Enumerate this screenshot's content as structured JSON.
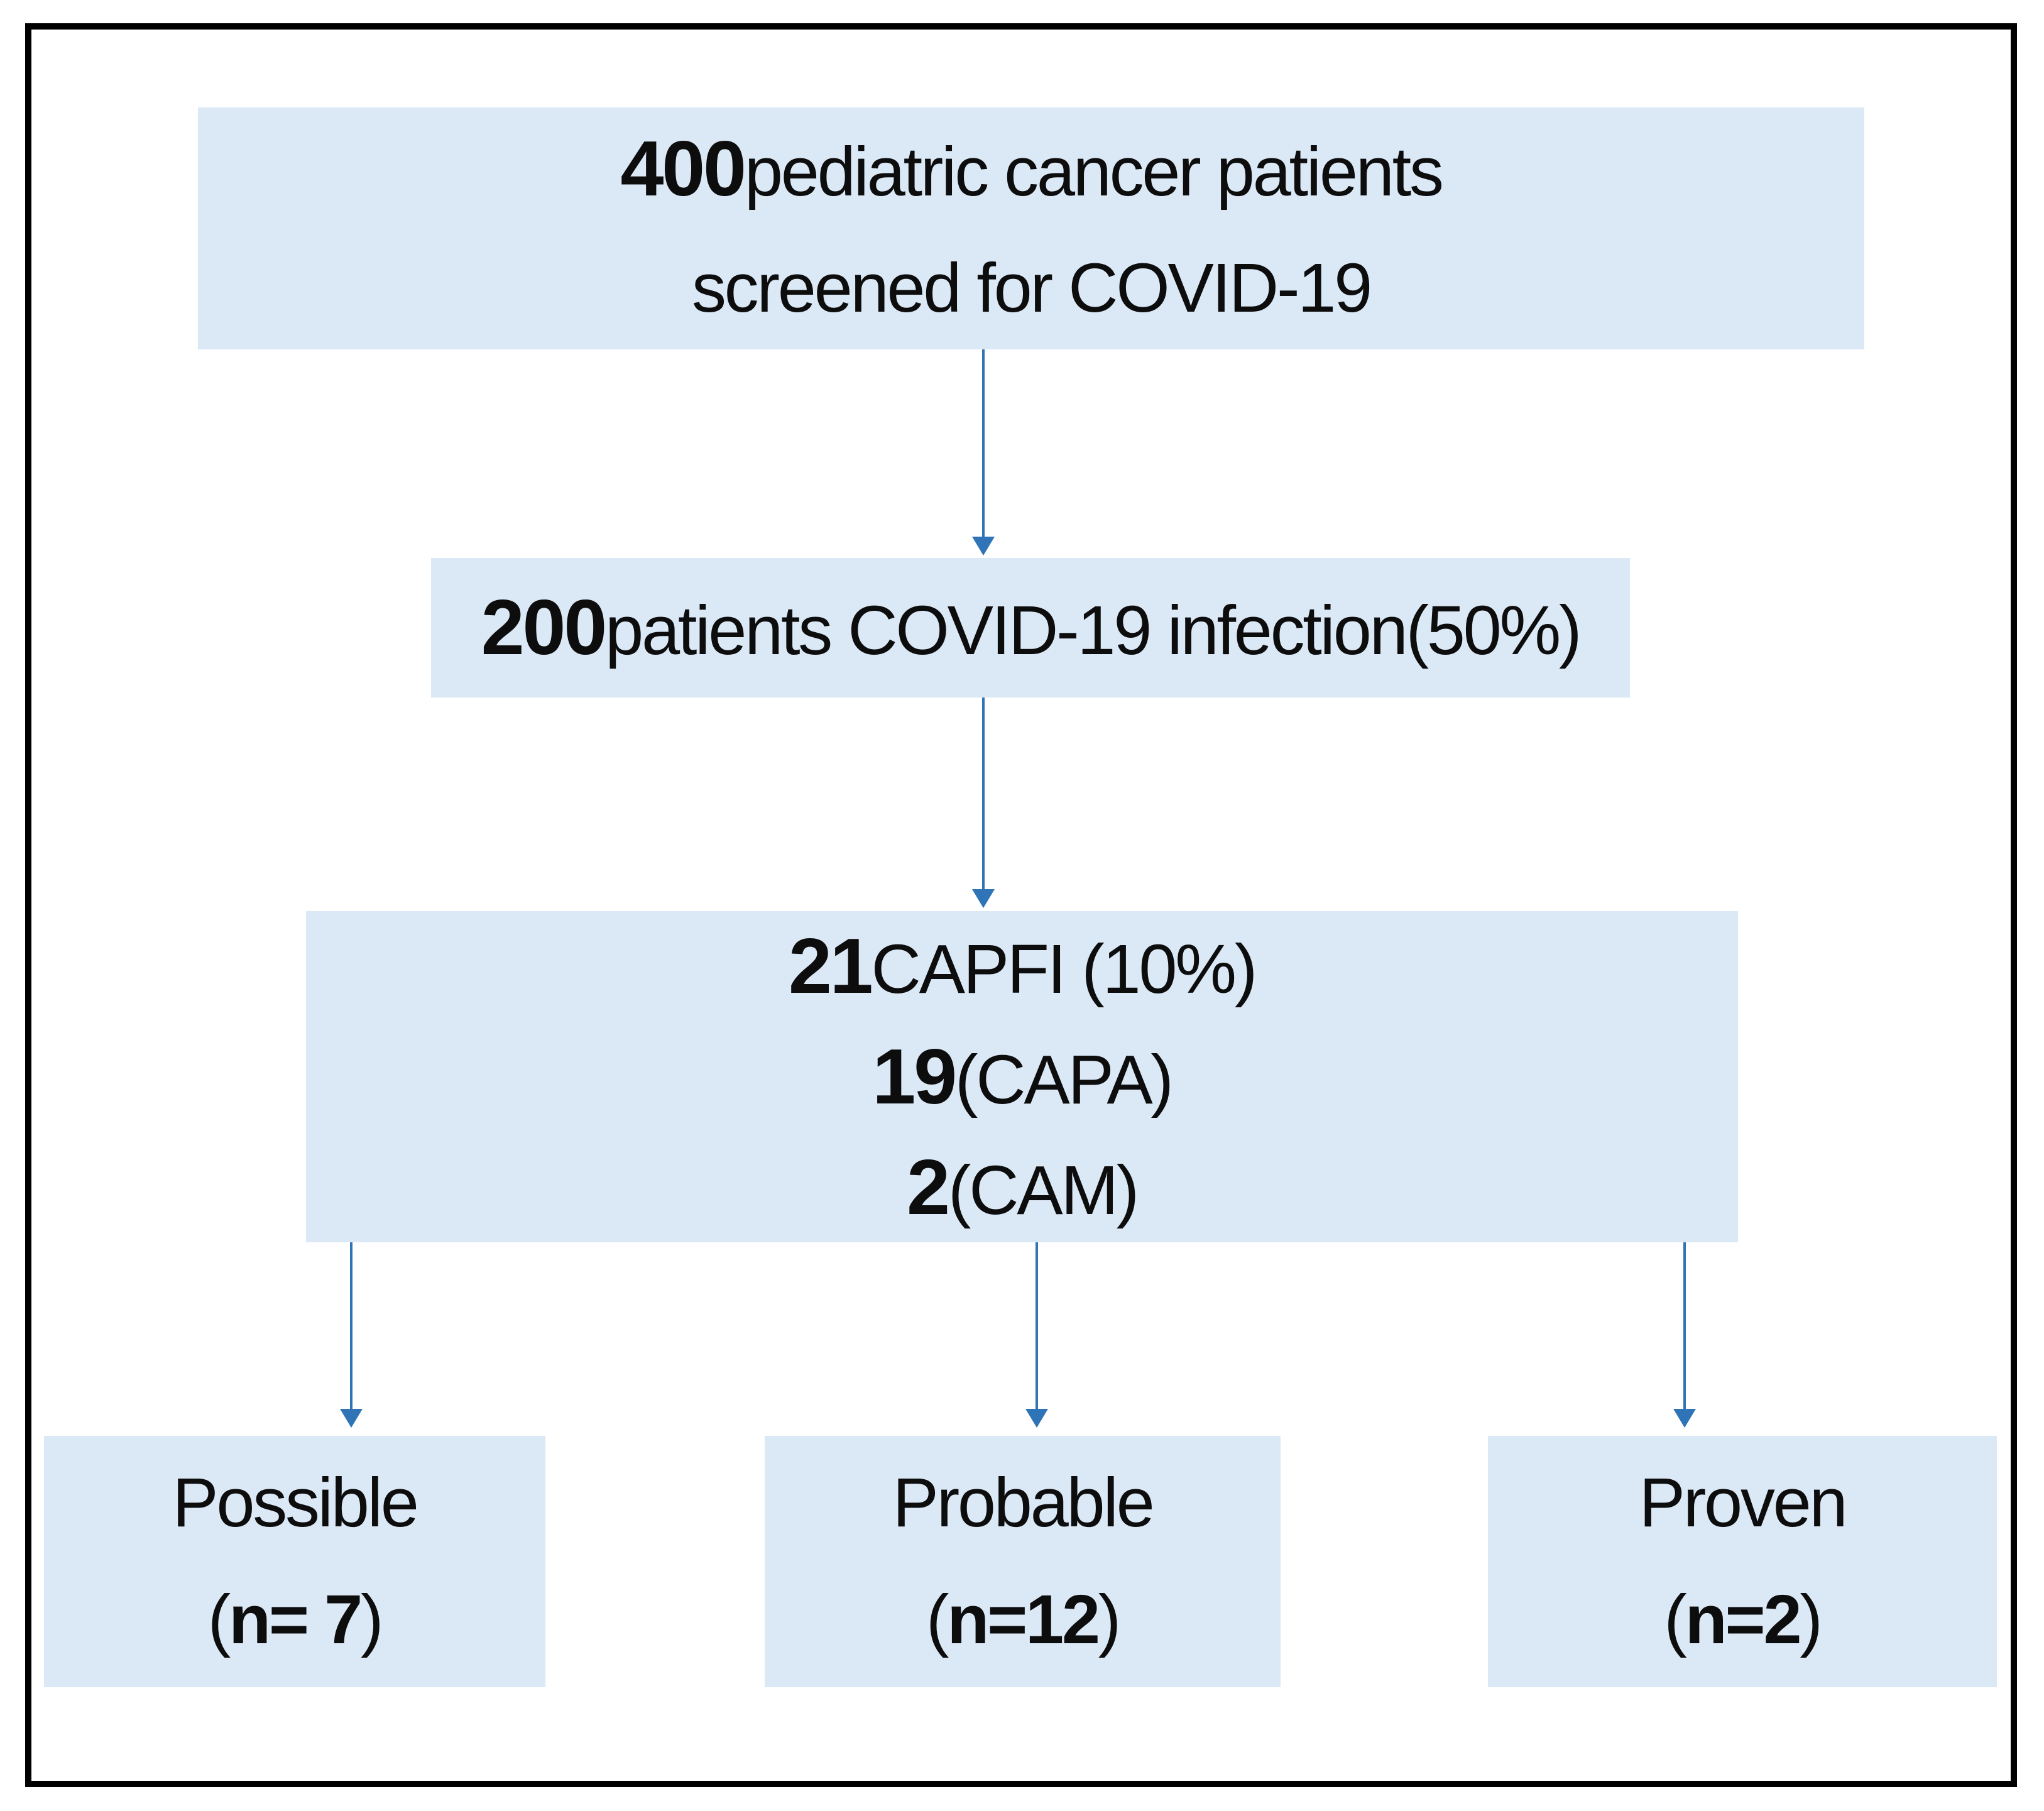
{
  "figure": {
    "type": "flowchart",
    "title": "COVID-19 associated fungal infection screening flowchart",
    "colors": {
      "box_fill": "#dbe8f6",
      "arrow": "#2e74b6",
      "frame_border": "#000000",
      "text": "#0d0d0d",
      "background": "#ffffff"
    },
    "nodes": {
      "screened": {
        "lines": {
          "0": [
            {
              "t": "400",
              "b": true
            },
            {
              "t": " pediatric cancer patients",
              "b": false
            }
          ],
          "1": [
            {
              "t": "screened for COVID-19",
              "b": false
            }
          ]
        }
      },
      "covid": {
        "lines": {
          "0": [
            {
              "t": "200",
              "b": true
            },
            {
              "t": " patients COVID-19 infection(50%)",
              "b": false
            }
          ]
        }
      },
      "capfi": {
        "lines": {
          "0": [
            {
              "t": "21",
              "b": true
            },
            {
              "t": " CAPFI (10%)",
              "b": false
            }
          ],
          "1": [
            {
              "t": "19",
              "b": true
            },
            {
              "t": " (CAPA)",
              "b": false
            }
          ],
          "2": [
            {
              "t": "2",
              "b": true
            },
            {
              "t": " (CAM)",
              "b": false
            }
          ]
        }
      },
      "possible": {
        "lines": {
          "0": [
            {
              "t": "Possible",
              "b": false
            }
          ],
          "1": [
            {
              "t": "(",
              "b": false
            },
            {
              "t": "n= 7",
              "b": true
            },
            {
              "t": ")",
              "b": false
            }
          ]
        }
      },
      "probable": {
        "lines": {
          "0": [
            {
              "t": "Probable",
              "b": false
            }
          ],
          "1": [
            {
              "t": "(",
              "b": false
            },
            {
              "t": "n=12",
              "b": true
            },
            {
              "t": ")",
              "b": false
            }
          ]
        }
      },
      "proven": {
        "lines": {
          "0": [
            {
              "t": "Proven",
              "b": false
            }
          ],
          "1": [
            {
              "t": "(",
              "b": false
            },
            {
              "t": "n=2",
              "b": true
            },
            {
              "t": ")",
              "b": false
            }
          ]
        }
      }
    }
  }
}
